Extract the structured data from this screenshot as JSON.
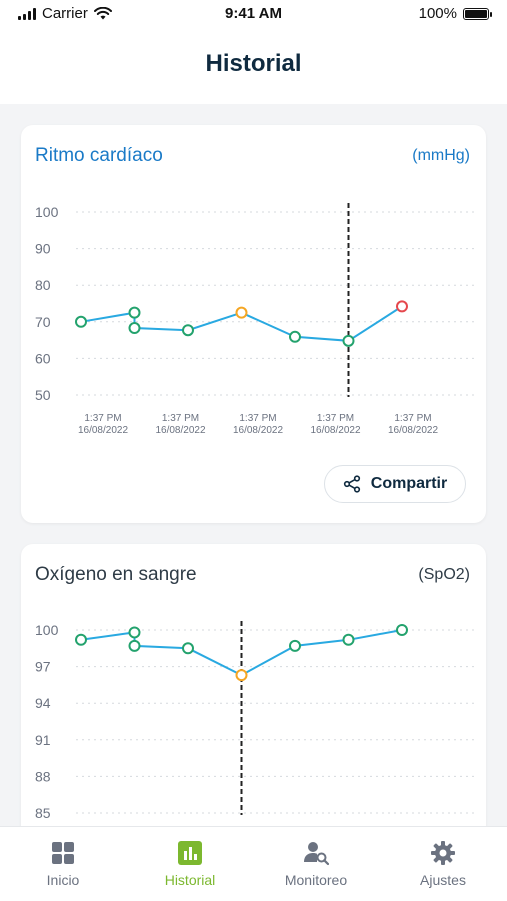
{
  "status_bar": {
    "carrier": "Carrier",
    "time": "9:41 AM",
    "battery": "100%"
  },
  "header": {
    "title": "Historial"
  },
  "cards": [
    {
      "title": "Ritmo cardíaco",
      "unit": "(mmHg)",
      "share_label": "Compartir"
    },
    {
      "title": "Oxígeno en sangre",
      "unit": "(SpO2)"
    }
  ],
  "tabs": [
    {
      "label": "Inicio",
      "icon": "grid-icon"
    },
    {
      "label": "Historial",
      "icon": "bar-chart-icon",
      "active": true
    },
    {
      "label": "Monitoreo",
      "icon": "user-search-icon"
    },
    {
      "label": "Ajustes",
      "icon": "gear-icon"
    }
  ],
  "colors": {
    "accent": "#7cb82f",
    "line": "#29a9e1",
    "normal": "#23a26d",
    "warn": "#f5a623",
    "alert": "#e5484d",
    "title_blue": "#1a7ac7"
  },
  "chart_data": [
    {
      "type": "line",
      "ylim": [
        50,
        100
      ],
      "yticks": [
        100,
        90,
        80,
        70,
        60,
        50
      ],
      "xticks": [
        {
          "time": "1:37 PM",
          "date": "16/08/2022"
        },
        {
          "time": "1:37 PM",
          "date": "16/08/2022"
        },
        {
          "time": "1:37 PM",
          "date": "16/08/2022"
        },
        {
          "time": "1:37 PM",
          "date": "16/08/2022"
        },
        {
          "time": "1:37 PM",
          "date": "16/08/2022"
        }
      ],
      "points": [
        {
          "x": 0,
          "y": 70,
          "status": "normal"
        },
        {
          "x": 1,
          "y": 72.5,
          "status": "normal"
        },
        {
          "x": 1,
          "y": 68.3,
          "status": "normal"
        },
        {
          "x": 2,
          "y": 67.7,
          "status": "normal"
        },
        {
          "x": 3,
          "y": 72.5,
          "status": "warn"
        },
        {
          "x": 4,
          "y": 65.9,
          "status": "normal"
        },
        {
          "x": 5,
          "y": 64.8,
          "status": "normal"
        },
        {
          "x": 6,
          "y": 74.2,
          "status": "alert"
        }
      ],
      "marker_x": 5,
      "grid": true
    },
    {
      "type": "line",
      "ylim": [
        85,
        100
      ],
      "yticks": [
        100,
        97,
        94,
        91,
        88,
        85
      ],
      "points": [
        {
          "x": 0,
          "y": 99.2,
          "status": "normal"
        },
        {
          "x": 1,
          "y": 99.8,
          "status": "normal"
        },
        {
          "x": 1,
          "y": 98.7,
          "status": "normal"
        },
        {
          "x": 2,
          "y": 98.5,
          "status": "normal"
        },
        {
          "x": 3,
          "y": 96.3,
          "status": "warn"
        },
        {
          "x": 4,
          "y": 98.7,
          "status": "normal"
        },
        {
          "x": 5,
          "y": 99.2,
          "status": "normal"
        },
        {
          "x": 6,
          "y": 100,
          "status": "normal"
        }
      ],
      "marker_x": 3,
      "grid": true
    }
  ]
}
